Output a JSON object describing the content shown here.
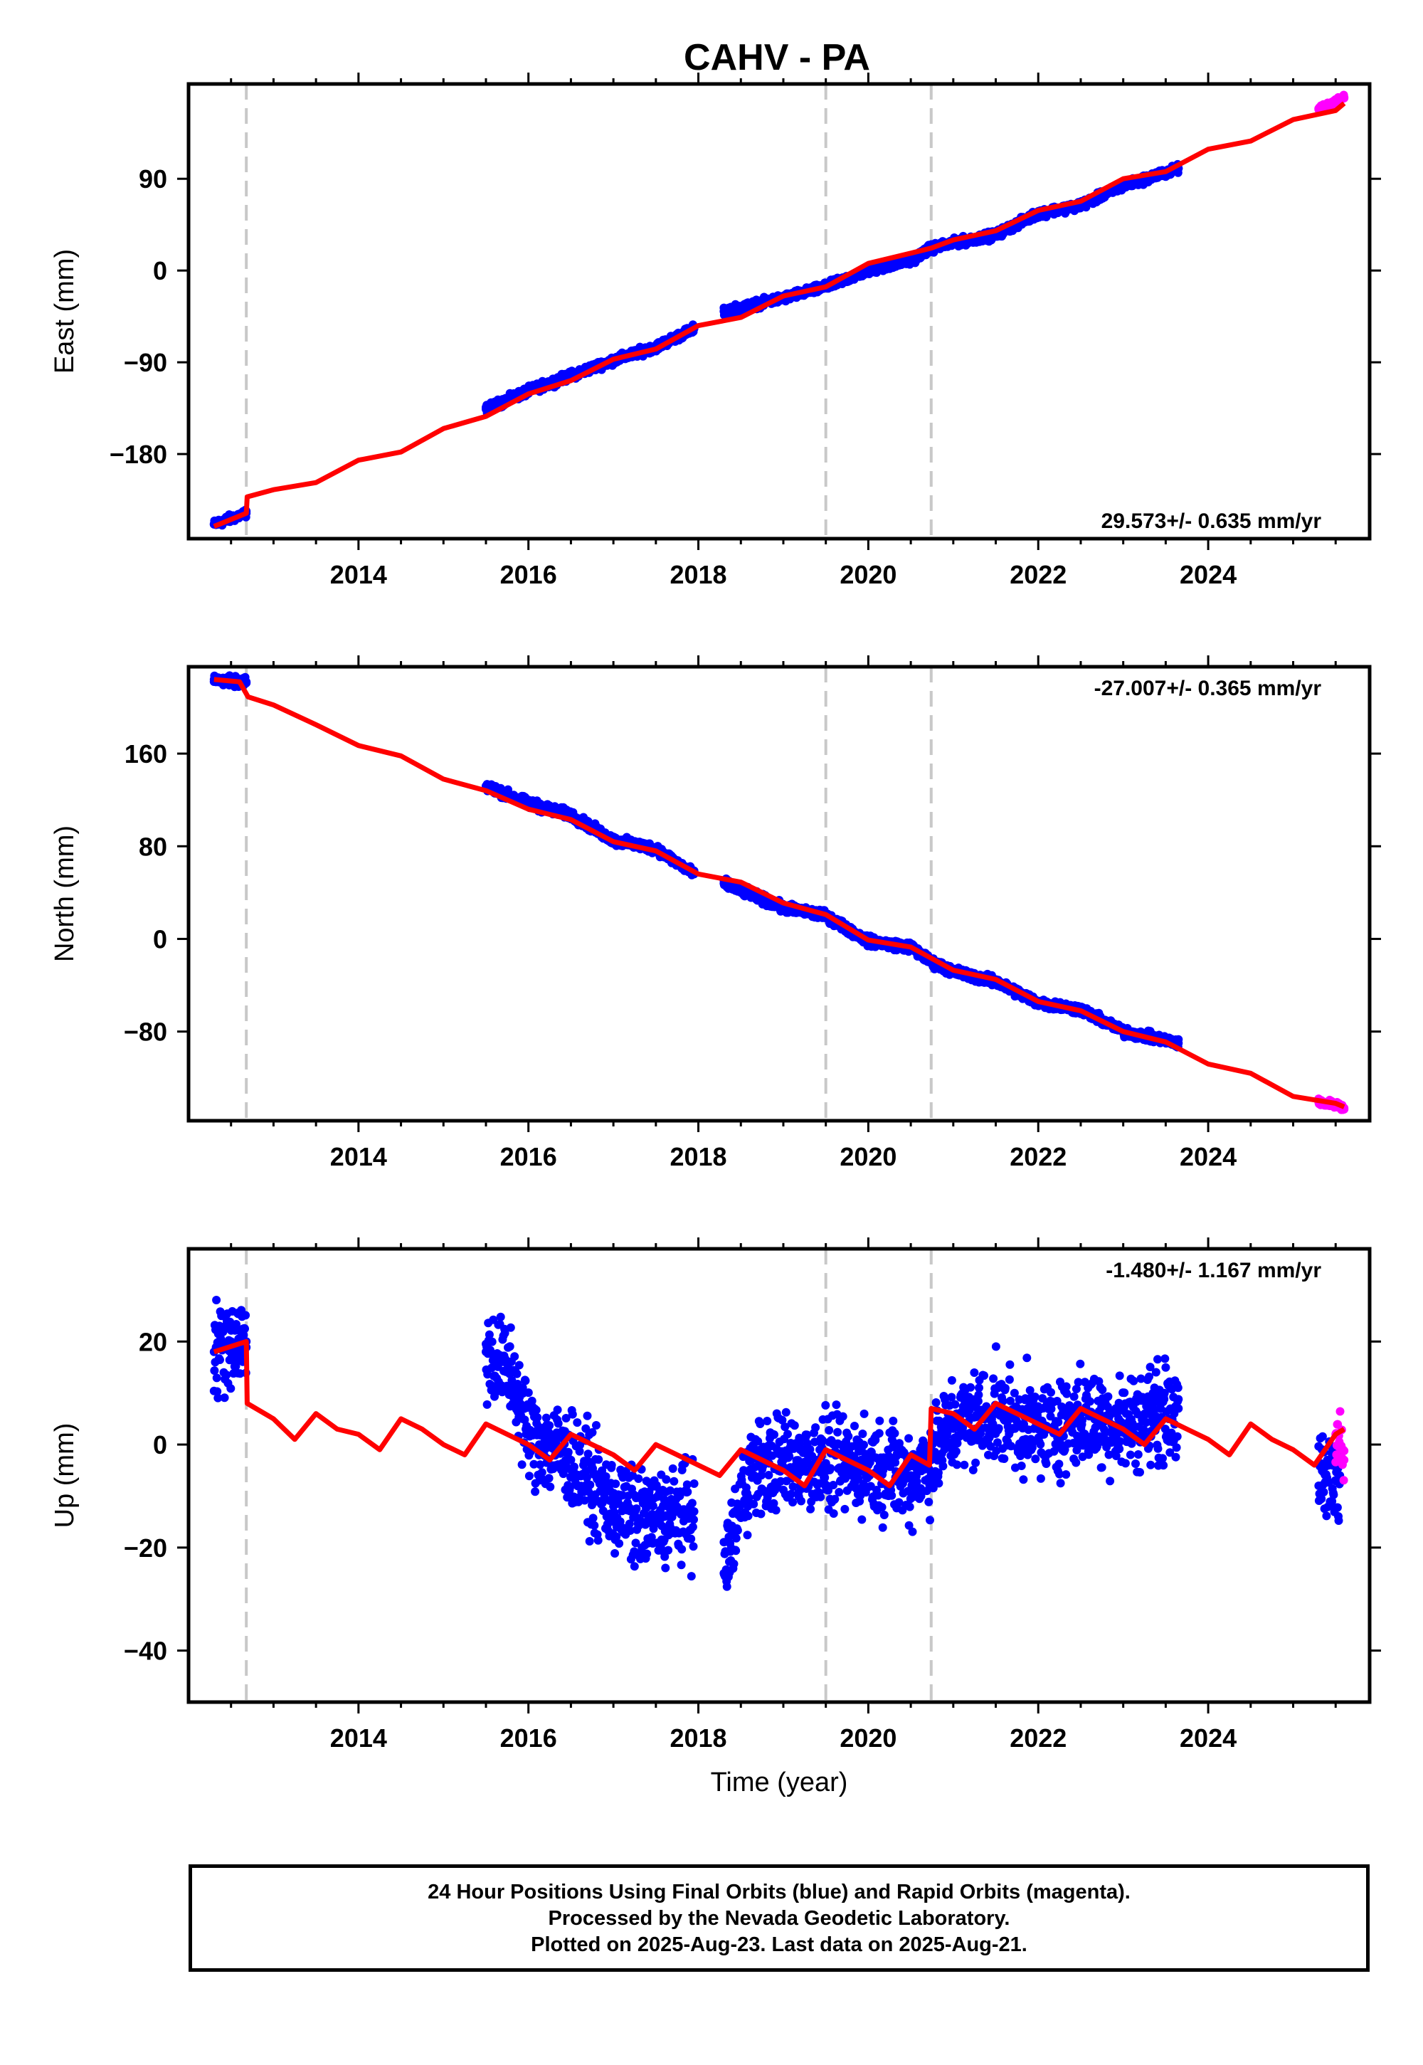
{
  "chart_data": [
    {
      "type": "scatter",
      "title": "CAHV - PA",
      "ylabel": "East (mm)",
      "xlabel": "",
      "rate_label": "29.573+/- 0.635 mm/yr",
      "xlim": [
        2012.0,
        2025.9
      ],
      "ylim": [
        -263,
        183
      ],
      "yticks": [
        -180,
        -90,
        0,
        90
      ],
      "xticks": [
        2014,
        2016,
        2018,
        2020,
        2022,
        2024
      ],
      "equipment_changes": [
        2012.68,
        2019.5,
        2020.74
      ],
      "series": [
        {
          "name": "",
          "color": "#0000ff",
          "kind": "scatter",
          "segments": [
            [
              2012.3,
              2012.68
            ],
            [
              2015.5,
              2017.95
            ],
            [
              2018.3,
              2023.65
            ]
          ],
          "points": [
            [
              2012.3,
              -249
            ],
            [
              2012.68,
              -238
            ],
            [
              2015.5,
              -136
            ],
            [
              2016.0,
              -118
            ],
            [
              2016.5,
              -103
            ],
            [
              2017.0,
              -88
            ],
            [
              2017.5,
              -75
            ],
            [
              2017.95,
              -57
            ],
            [
              2018.3,
              -40
            ],
            [
              2019.0,
              -27
            ],
            [
              2019.5,
              -16
            ],
            [
              2020.0,
              0
            ],
            [
              2020.5,
              10
            ],
            [
              2020.74,
              22
            ],
            [
              2021.0,
              27
            ],
            [
              2021.5,
              35
            ],
            [
              2022.0,
              56
            ],
            [
              2022.5,
              64
            ],
            [
              2023.0,
              83
            ],
            [
              2023.65,
              100
            ]
          ],
          "scatter": 4
        },
        {
          "name": "",
          "color": "#ff00ff",
          "kind": "scatter",
          "points": [
            [
              2025.3,
              158
            ],
            [
              2025.5,
              166
            ],
            [
              2025.6,
              170
            ]
          ],
          "scatter": 3
        },
        {
          "name": "",
          "color": "#ff0000",
          "kind": "line",
          "points": [
            [
              2012.3,
              -251
            ],
            [
              2012.68,
              -238
            ],
            [
              2012.69,
              -222
            ],
            [
              2013.0,
              -215
            ],
            [
              2013.5,
              -208
            ],
            [
              2014.0,
              -186
            ],
            [
              2014.5,
              -178
            ],
            [
              2015.0,
              -155
            ],
            [
              2015.5,
              -143
            ],
            [
              2016.0,
              -121
            ],
            [
              2016.5,
              -108
            ],
            [
              2017.0,
              -87
            ],
            [
              2017.5,
              -77
            ],
            [
              2018.0,
              -54
            ],
            [
              2018.5,
              -46
            ],
            [
              2019.0,
              -25
            ],
            [
              2019.5,
              -16
            ],
            [
              2020.0,
              7
            ],
            [
              2020.5,
              17
            ],
            [
              2020.74,
              22
            ],
            [
              2021.0,
              30
            ],
            [
              2021.5,
              39
            ],
            [
              2022.0,
              59
            ],
            [
              2022.5,
              68
            ],
            [
              2023.0,
              90
            ],
            [
              2023.5,
              97
            ],
            [
              2024.0,
              119
            ],
            [
              2024.5,
              127
            ],
            [
              2025.0,
              148
            ],
            [
              2025.5,
              157
            ],
            [
              2025.6,
              164
            ]
          ]
        }
      ]
    },
    {
      "type": "scatter",
      "title": "",
      "ylabel": "North (mm)",
      "xlabel": "",
      "rate_label": "-27.007+/- 0.365 mm/yr",
      "xlim": [
        2012.0,
        2025.9
      ],
      "ylim": [
        -157,
        235
      ],
      "yticks": [
        -80,
        0,
        80,
        160
      ],
      "xticks": [
        2014,
        2016,
        2018,
        2020,
        2022,
        2024
      ],
      "equipment_changes": [
        2012.68,
        2019.5,
        2020.74
      ],
      "series": [
        {
          "name": "",
          "color": "#0000ff",
          "kind": "scatter",
          "segments": [
            [
              2012.3,
              2012.68
            ],
            [
              2015.5,
              2017.95
            ],
            [
              2018.3,
              2023.65
            ]
          ],
          "points": [
            [
              2012.3,
              224
            ],
            [
              2012.68,
              221
            ],
            [
              2015.5,
              132
            ],
            [
              2016.0,
              117
            ],
            [
              2016.5,
              107
            ],
            [
              2017.0,
              85
            ],
            [
              2017.5,
              78
            ],
            [
              2017.95,
              56
            ],
            [
              2018.3,
              48
            ],
            [
              2019.0,
              27
            ],
            [
              2019.5,
              20
            ],
            [
              2020.0,
              -2
            ],
            [
              2020.5,
              -7
            ],
            [
              2020.74,
              -20
            ],
            [
              2021.0,
              -28
            ],
            [
              2021.5,
              -37
            ],
            [
              2022.0,
              -55
            ],
            [
              2022.5,
              -61
            ],
            [
              2023.0,
              -80
            ],
            [
              2023.65,
              -90
            ]
          ],
          "scatter": 4
        },
        {
          "name": "",
          "color": "#ff00ff",
          "kind": "scatter",
          "points": [
            [
              2025.3,
              -141
            ],
            [
              2025.5,
              -143
            ],
            [
              2025.6,
              -146
            ]
          ],
          "scatter": 3
        },
        {
          "name": "",
          "color": "#ff0000",
          "kind": "line",
          "points": [
            [
              2012.3,
              224
            ],
            [
              2012.6,
              222
            ],
            [
              2012.7,
              209
            ],
            [
              2013.0,
              202
            ],
            [
              2013.5,
              185
            ],
            [
              2014.0,
              167
            ],
            [
              2014.5,
              158
            ],
            [
              2015.0,
              138
            ],
            [
              2015.5,
              128
            ],
            [
              2016.0,
              112
            ],
            [
              2016.5,
              103
            ],
            [
              2017.0,
              84
            ],
            [
              2017.5,
              76
            ],
            [
              2018.0,
              56
            ],
            [
              2018.5,
              49
            ],
            [
              2019.0,
              31
            ],
            [
              2019.5,
              21
            ],
            [
              2020.0,
              -1
            ],
            [
              2020.5,
              -7
            ],
            [
              2021.0,
              -27
            ],
            [
              2021.5,
              -35
            ],
            [
              2022.0,
              -54
            ],
            [
              2022.5,
              -62
            ],
            [
              2023.0,
              -80
            ],
            [
              2023.5,
              -89
            ],
            [
              2024.0,
              -108
            ],
            [
              2024.5,
              -116
            ],
            [
              2025.0,
              -136
            ],
            [
              2025.5,
              -142
            ],
            [
              2025.6,
              -145
            ]
          ]
        }
      ]
    },
    {
      "type": "scatter",
      "title": "",
      "ylabel": "Up (mm)",
      "xlabel": "Time (year)",
      "rate_label": "-1.480+/- 1.167 mm/yr",
      "xlim": [
        2012.0,
        2025.9
      ],
      "ylim": [
        -50,
        38
      ],
      "yticks": [
        -40,
        -20,
        0,
        20
      ],
      "xticks": [
        2014,
        2016,
        2018,
        2020,
        2022,
        2024
      ],
      "equipment_changes": [
        2012.68,
        2019.5,
        2020.74
      ],
      "series": [
        {
          "name": "",
          "color": "#0000ff",
          "kind": "scatter",
          "segments": [
            [
              2012.3,
              2012.68
            ],
            [
              2015.5,
              2017.95
            ],
            [
              2018.3,
              2023.65
            ],
            [
              2025.3,
              2025.55
            ]
          ],
          "points": [
            [
              2012.3,
              18
            ],
            [
              2012.5,
              20
            ],
            [
              2012.68,
              20
            ],
            [
              2015.5,
              18
            ],
            [
              2015.8,
              14
            ],
            [
              2016.0,
              2
            ],
            [
              2016.5,
              -3
            ],
            [
              2017.0,
              -12
            ],
            [
              2017.3,
              -15
            ],
            [
              2017.6,
              -14
            ],
            [
              2017.95,
              -13
            ],
            [
              2018.3,
              -25
            ],
            [
              2018.6,
              -5
            ],
            [
              2019.0,
              -3
            ],
            [
              2019.5,
              -4
            ],
            [
              2020.0,
              -4
            ],
            [
              2020.5,
              -6
            ],
            [
              2020.74,
              -3
            ],
            [
              2021.0,
              4
            ],
            [
              2021.5,
              6
            ],
            [
              2022.0,
              3
            ],
            [
              2022.5,
              5
            ],
            [
              2023.0,
              4
            ],
            [
              2023.65,
              7
            ],
            [
              2025.3,
              -8
            ],
            [
              2025.55,
              -6
            ]
          ],
          "scatter": 9
        },
        {
          "name": "",
          "color": "#ff00ff",
          "kind": "scatter",
          "points": [
            [
              2025.5,
              2
            ],
            [
              2025.55,
              0
            ],
            [
              2025.6,
              -3
            ]
          ],
          "scatter": 6
        },
        {
          "name": "",
          "color": "#ff0000",
          "kind": "line",
          "points": [
            [
              2012.3,
              18
            ],
            [
              2012.68,
              20
            ],
            [
              2012.69,
              8
            ],
            [
              2013.0,
              5
            ],
            [
              2013.25,
              1
            ],
            [
              2013.5,
              6
            ],
            [
              2013.75,
              3
            ],
            [
              2014.0,
              2
            ],
            [
              2014.25,
              -1
            ],
            [
              2014.5,
              5
            ],
            [
              2014.75,
              3
            ],
            [
              2015.0,
              0
            ],
            [
              2015.25,
              -2
            ],
            [
              2015.5,
              4
            ],
            [
              2015.75,
              2
            ],
            [
              2016.0,
              0
            ],
            [
              2016.25,
              -3
            ],
            [
              2016.5,
              2
            ],
            [
              2016.75,
              0
            ],
            [
              2017.0,
              -2
            ],
            [
              2017.25,
              -5
            ],
            [
              2017.5,
              0
            ],
            [
              2017.75,
              -2
            ],
            [
              2018.0,
              -4
            ],
            [
              2018.25,
              -6
            ],
            [
              2018.5,
              -1
            ],
            [
              2018.75,
              -3
            ],
            [
              2019.0,
              -5
            ],
            [
              2019.25,
              -8
            ],
            [
              2019.5,
              -1
            ],
            [
              2019.75,
              -3
            ],
            [
              2020.0,
              -5
            ],
            [
              2020.25,
              -8
            ],
            [
              2020.5,
              -2
            ],
            [
              2020.72,
              -4
            ],
            [
              2020.74,
              7
            ],
            [
              2021.0,
              6
            ],
            [
              2021.25,
              3
            ],
            [
              2021.5,
              8
            ],
            [
              2021.75,
              6
            ],
            [
              2022.0,
              4
            ],
            [
              2022.25,
              2
            ],
            [
              2022.5,
              7
            ],
            [
              2022.75,
              5
            ],
            [
              2023.0,
              3
            ],
            [
              2023.25,
              0
            ],
            [
              2023.5,
              5
            ],
            [
              2023.75,
              3
            ],
            [
              2024.0,
              1
            ],
            [
              2024.25,
              -2
            ],
            [
              2024.5,
              4
            ],
            [
              2024.75,
              1
            ],
            [
              2025.0,
              -1
            ],
            [
              2025.25,
              -4
            ],
            [
              2025.5,
              2
            ],
            [
              2025.6,
              3
            ]
          ]
        }
      ]
    }
  ],
  "footer": {
    "line1": "24 Hour Positions Using Final Orbits (blue) and Rapid Orbits (magenta).",
    "line2": "Processed by the Nevada Geodetic Laboratory.",
    "line3": "Plotted on 2025-Aug-23. Last data on 2025-Aug-21."
  }
}
